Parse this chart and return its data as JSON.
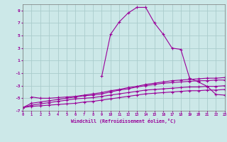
{
  "xlabel": "Windchill (Refroidissement éolien,°C)",
  "bg_color": "#cce8e8",
  "grid_color": "#aacccc",
  "line_color": "#990099",
  "x_range": [
    0,
    23
  ],
  "y_range": [
    -7,
    10
  ],
  "y_ticks": [
    -7,
    -5,
    -3,
    -1,
    1,
    3,
    5,
    7,
    9
  ],
  "x_ticks": [
    0,
    1,
    2,
    3,
    4,
    5,
    6,
    7,
    8,
    9,
    10,
    11,
    12,
    13,
    14,
    15,
    16,
    17,
    18,
    19,
    20,
    21,
    22,
    23
  ],
  "series": [
    {
      "x": [
        0,
        1,
        2,
        3,
        4,
        5,
        6,
        7,
        8,
        9,
        10,
        11,
        12,
        13,
        14,
        15,
        16,
        17,
        18,
        19,
        20,
        21,
        22,
        23
      ],
      "y": [
        -6.5,
        -6.3,
        -6.2,
        -6.1,
        -6.0,
        -5.9,
        -5.8,
        -5.6,
        -5.5,
        -5.3,
        -5.1,
        -4.9,
        -4.7,
        -4.5,
        -4.3,
        -4.2,
        -4.1,
        -4.0,
        -3.9,
        -3.8,
        -3.8,
        -3.7,
        -3.7,
        -3.6
      ]
    },
    {
      "x": [
        0,
        1,
        2,
        3,
        4,
        5,
        6,
        7,
        8,
        9,
        10,
        11,
        12,
        13,
        14,
        15,
        16,
        17,
        18,
        19,
        20,
        21,
        22,
        23
      ],
      "y": [
        -6.5,
        -6.1,
        -5.9,
        -5.7,
        -5.5,
        -5.3,
        -5.1,
        -5.0,
        -4.9,
        -4.7,
        -4.5,
        -4.3,
        -4.1,
        -3.9,
        -3.7,
        -3.6,
        -3.5,
        -3.4,
        -3.3,
        -3.2,
        -3.2,
        -3.1,
        -3.1,
        -3.0
      ]
    },
    {
      "x": [
        0,
        1,
        2,
        3,
        4,
        5,
        6,
        7,
        8,
        9,
        10,
        11,
        12,
        13,
        14,
        15,
        16,
        17,
        18,
        19,
        20,
        21,
        22,
        23
      ],
      "y": [
        -6.5,
        -5.8,
        -5.6,
        -5.4,
        -5.2,
        -5.0,
        -4.8,
        -4.6,
        -4.5,
        -4.3,
        -4.0,
        -3.7,
        -3.5,
        -3.2,
        -3.0,
        -2.8,
        -2.6,
        -2.5,
        -2.4,
        -2.3,
        -2.2,
        -2.2,
        -2.1,
        -2.1
      ]
    },
    {
      "x": [
        1,
        2,
        3,
        4,
        5,
        6,
        7,
        8,
        9,
        10,
        11,
        12,
        13,
        14,
        15,
        16,
        17,
        18,
        19,
        20,
        21,
        22,
        23
      ],
      "y": [
        -4.8,
        -5.0,
        -5.0,
        -4.9,
        -4.8,
        -4.7,
        -4.5,
        -4.3,
        -4.1,
        -3.8,
        -3.6,
        -3.3,
        -3.1,
        -2.8,
        -2.6,
        -2.4,
        -2.2,
        -2.1,
        -2.0,
        -1.9,
        -1.8,
        -1.8,
        -1.7
      ]
    },
    {
      "x": [
        9,
        10,
        11,
        12,
        13,
        14,
        15,
        16,
        17,
        18,
        19,
        20,
        21,
        22,
        23
      ],
      "y": [
        -1.5,
        5.2,
        7.2,
        8.6,
        9.5,
        9.5,
        7.0,
        5.2,
        3.0,
        2.8,
        -1.8,
        -2.4,
        -3.1,
        -4.4,
        -4.5
      ]
    }
  ]
}
